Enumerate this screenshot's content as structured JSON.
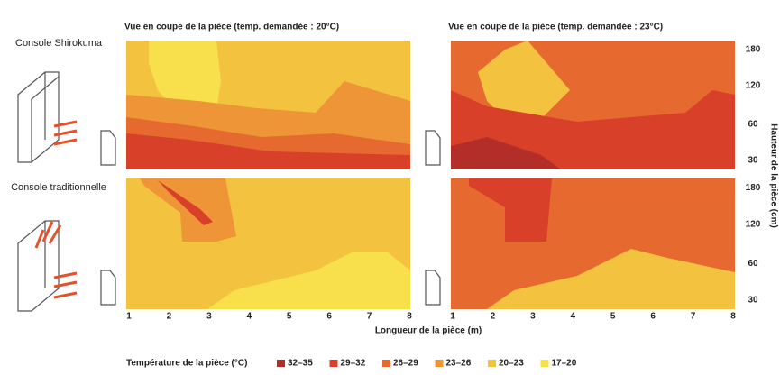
{
  "rows": [
    {
      "label": "Console Shirokuma",
      "y_ticks": [
        180,
        120,
        60,
        30
      ]
    },
    {
      "label": "Console traditionnelle",
      "y_ticks": [
        180,
        120,
        60,
        30
      ]
    }
  ],
  "columns": [
    {
      "title": "Vue en coupe de la pièce (temp. demandée : 20°C)",
      "x_ticks": [
        1,
        2,
        3,
        4,
        5,
        6,
        7,
        8
      ]
    },
    {
      "title": "Vue en coupe de la pièce (temp. demandée : 23°C)",
      "x_ticks": [
        1,
        2,
        3,
        4,
        5,
        6,
        7,
        8
      ]
    }
  ],
  "x_axis_title": "Longueur de la pièce (m)",
  "y_axis_title": "Hauteur de la pièce (cm)",
  "legend": {
    "title": "Température de la pièce (°C)",
    "items": [
      {
        "label": "32–35",
        "color": "#b32e28"
      },
      {
        "label": "29–32",
        "color": "#d8402a"
      },
      {
        "label": "26–29",
        "color": "#e66a2f"
      },
      {
        "label": "23–26",
        "color": "#ee9537"
      },
      {
        "label": "20–23",
        "color": "#f3c23f"
      },
      {
        "label": "17–20",
        "color": "#f8e04c"
      }
    ]
  }
}
